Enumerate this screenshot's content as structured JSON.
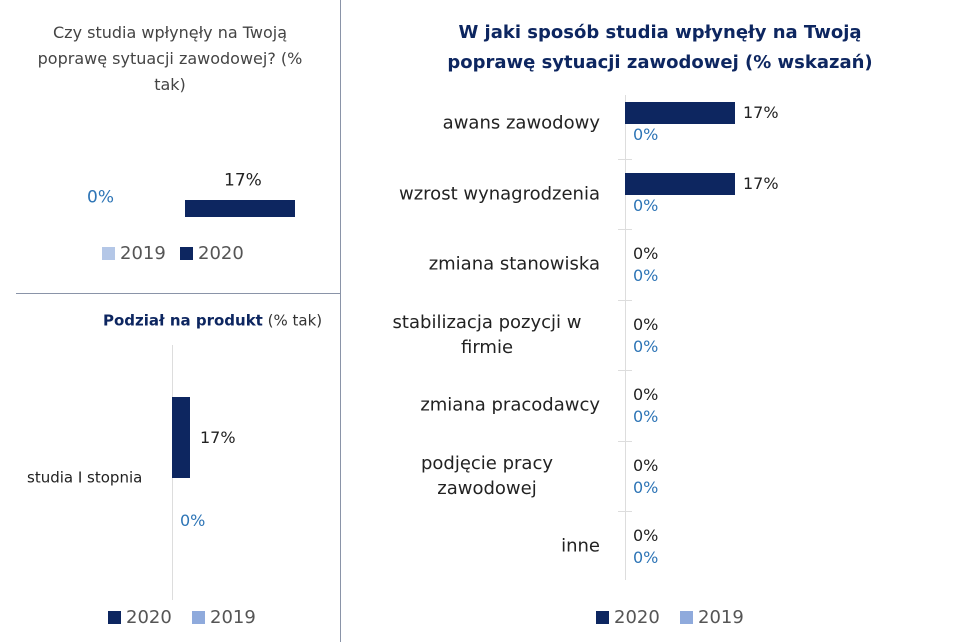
{
  "chart_data": [
    {
      "type": "bar",
      "orientation": "horizontal",
      "title": "Czy studia wpłynęły na Twoją poprawę sytuacji zawodowej? (% tak)",
      "categories": [
        null
      ],
      "series": [
        {
          "name": "2019",
          "color": "#b4c7e7",
          "values": [
            0
          ],
          "value_labels": [
            "0%"
          ]
        },
        {
          "name": "2020",
          "color": "#0d2660",
          "values": [
            17
          ],
          "value_labels": [
            "17%"
          ]
        }
      ]
    },
    {
      "type": "column",
      "title": "Podział na produkt",
      "subtitle": "(% tak)",
      "categories": [
        "studia I stopnia"
      ],
      "series": [
        {
          "name": "2020",
          "color": "#0d2660",
          "values": [
            17
          ],
          "value_labels": [
            "17%"
          ]
        },
        {
          "name": "2019",
          "color": "#8faadc",
          "values": [
            0
          ],
          "value_labels": [
            "0%"
          ]
        }
      ]
    },
    {
      "type": "bar",
      "orientation": "horizontal",
      "title": "W jaki sposób studia wpłynęły na Twoją poprawę sytuacji zawodowej (% wskazań)",
      "categories": [
        "awans zawodowy",
        "wzrost wynagrodzenia",
        "zmiana stanowiska",
        "stabilizacja pozycji w firmie",
        "zmiana pracodawcy",
        "podjęcie pracy zawodowej",
        "inne"
      ],
      "series": [
        {
          "name": "2020",
          "color": "#0d2660",
          "values": [
            17,
            17,
            0,
            0,
            0,
            0,
            0
          ],
          "value_labels": [
            "17%",
            "17%",
            "0%",
            "0%",
            "0%",
            "0%",
            "0%"
          ]
        },
        {
          "name": "2019",
          "color": "#8faadc",
          "values": [
            0,
            0,
            0,
            0,
            0,
            0,
            0
          ],
          "value_labels": [
            "0%",
            "0%",
            "0%",
            "0%",
            "0%",
            "0%",
            "0%"
          ]
        }
      ]
    }
  ]
}
